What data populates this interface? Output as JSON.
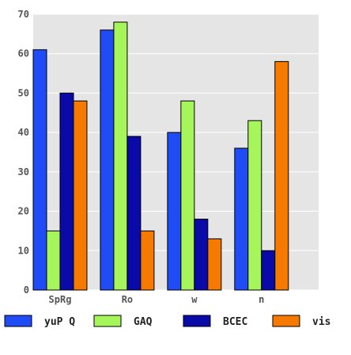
{
  "chart_data": {
    "type": "bar",
    "categories": [
      "SpRg",
      "Ro",
      "w",
      "n"
    ],
    "series": [
      {
        "name": "yuP Q",
        "values": [
          61,
          66,
          40,
          36
        ],
        "color": "#1f4cf5"
      },
      {
        "name": "GAQ",
        "values": [
          15,
          68,
          48,
          43
        ],
        "color": "#a6f55a"
      },
      {
        "name": "BCEC",
        "values": [
          50,
          39,
          18,
          10
        ],
        "color": "#0a0aa8"
      },
      {
        "name": "vis",
        "values": [
          48,
          15,
          13,
          58
        ],
        "color": "#f77a00"
      }
    ],
    "ylim": [
      0,
      70
    ],
    "yticks": [
      0,
      10,
      20,
      30,
      40,
      50,
      60,
      70
    ],
    "grid": true,
    "legend_position": "bottom",
    "plot_background": "#e5e5e5",
    "grid_color": "#ffffff"
  }
}
